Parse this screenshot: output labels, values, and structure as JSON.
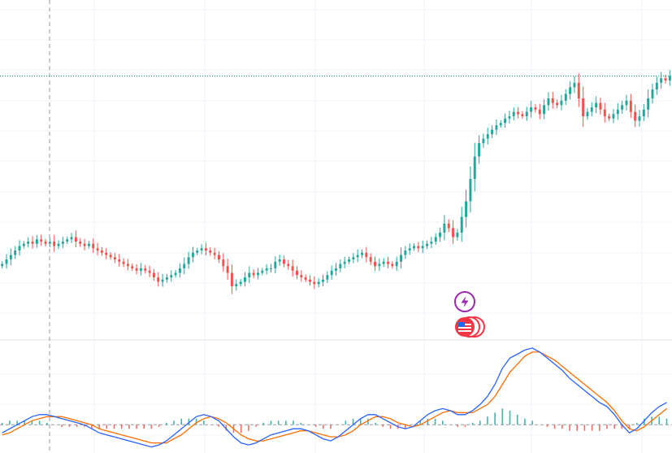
{
  "colors": {
    "background": "#ffffff",
    "grid": "#f0f3fa",
    "up_candle": "#26a69a",
    "down_candle": "#ef5350",
    "last_price_line": "#089981",
    "macd_line": "#2962ff",
    "signal_line": "#ff6d00",
    "histogram_up": "#26a69a",
    "histogram_down": "#ef5350",
    "crosshair": "#9598a1",
    "pane_separator": "#e0e3eb",
    "event_lightning": "#9c27b0",
    "event_flag": "#f23645"
  },
  "icons": {
    "event_marker_1": "lightning-icon",
    "event_marker_2": "us-flag-icon"
  },
  "chart_data": [
    {
      "type": "candlestick",
      "title": "",
      "pane": "price",
      "visible_points": 155,
      "closes": [
        0.74,
        0.76,
        0.78,
        0.8,
        0.82,
        0.83,
        0.84,
        0.83,
        0.85,
        0.84,
        0.83,
        0.84,
        0.82,
        0.83,
        0.84,
        0.85,
        0.86,
        0.84,
        0.83,
        0.82,
        0.83,
        0.81,
        0.8,
        0.79,
        0.78,
        0.77,
        0.76,
        0.75,
        0.74,
        0.73,
        0.72,
        0.71,
        0.72,
        0.71,
        0.7,
        0.68,
        0.66,
        0.67,
        0.68,
        0.69,
        0.7,
        0.72,
        0.74,
        0.77,
        0.79,
        0.8,
        0.81,
        0.8,
        0.79,
        0.78,
        0.76,
        0.73,
        0.7,
        0.64,
        0.65,
        0.66,
        0.68,
        0.7,
        0.69,
        0.7,
        0.71,
        0.72,
        0.72,
        0.75,
        0.76,
        0.74,
        0.73,
        0.71,
        0.69,
        0.68,
        0.67,
        0.66,
        0.65,
        0.66,
        0.67,
        0.69,
        0.71,
        0.72,
        0.74,
        0.75,
        0.76,
        0.77,
        0.78,
        0.79,
        0.77,
        0.75,
        0.73,
        0.74,
        0.75,
        0.74,
        0.73,
        0.75,
        0.78,
        0.8,
        0.81,
        0.82,
        0.81,
        0.82,
        0.83,
        0.84,
        0.86,
        0.88,
        0.92,
        0.9,
        0.86,
        0.88,
        0.95,
        1.02,
        1.12,
        1.22,
        1.28,
        1.3,
        1.32,
        1.34,
        1.36,
        1.37,
        1.39,
        1.4,
        1.42,
        1.41,
        1.4,
        1.42,
        1.44,
        1.43,
        1.41,
        1.45,
        1.48,
        1.46,
        1.45,
        1.47,
        1.5,
        1.53,
        1.55,
        1.48,
        1.4,
        1.42,
        1.44,
        1.46,
        1.43,
        1.4,
        1.39,
        1.41,
        1.43,
        1.45,
        1.47,
        1.42,
        1.38,
        1.4,
        1.43,
        1.48,
        1.52,
        1.55,
        1.57,
        1.56,
        1.58
      ],
      "last_price_level": 1.58,
      "x_range": [
        0,
        155
      ],
      "y_range": [
        0.4,
        1.92
      ]
    },
    {
      "type": "line",
      "title": "",
      "pane": "oscillator",
      "series": [
        {
          "key": "macd",
          "values": [
            -0.04,
            -0.02,
            0.0,
            0.02,
            0.04,
            0.05,
            0.05,
            0.04,
            0.03,
            0.02,
            0.01,
            0.0,
            -0.02,
            -0.04,
            -0.05,
            -0.06,
            -0.07,
            -0.08,
            -0.09,
            -0.1,
            -0.11,
            -0.1,
            -0.08,
            -0.05,
            -0.02,
            0.01,
            0.04,
            0.05,
            0.04,
            0.02,
            -0.02,
            -0.06,
            -0.09,
            -0.1,
            -0.09,
            -0.07,
            -0.05,
            -0.04,
            -0.03,
            -0.02,
            -0.02,
            -0.03,
            -0.05,
            -0.07,
            -0.08,
            -0.06,
            -0.03,
            0.0,
            0.03,
            0.05,
            0.05,
            0.03,
            0.01,
            -0.01,
            -0.02,
            -0.01,
            0.02,
            0.05,
            0.07,
            0.08,
            0.07,
            0.05,
            0.05,
            0.07,
            0.1,
            0.14,
            0.2,
            0.28,
            0.33,
            0.35,
            0.37,
            0.38,
            0.36,
            0.33,
            0.3,
            0.27,
            0.23,
            0.2,
            0.17,
            0.14,
            0.11,
            0.09,
            0.05,
            0.0,
            -0.04,
            -0.02,
            0.02,
            0.06,
            0.09,
            0.11
          ]
        },
        {
          "key": "signal",
          "values": [
            -0.05,
            -0.04,
            -0.02,
            0.0,
            0.02,
            0.03,
            0.04,
            0.04,
            0.04,
            0.03,
            0.02,
            0.01,
            0.0,
            -0.02,
            -0.03,
            -0.04,
            -0.05,
            -0.06,
            -0.07,
            -0.08,
            -0.09,
            -0.09,
            -0.09,
            -0.07,
            -0.05,
            -0.02,
            0.01,
            0.03,
            0.04,
            0.03,
            0.01,
            -0.02,
            -0.05,
            -0.07,
            -0.08,
            -0.08,
            -0.07,
            -0.06,
            -0.05,
            -0.04,
            -0.03,
            -0.03,
            -0.04,
            -0.05,
            -0.06,
            -0.06,
            -0.05,
            -0.03,
            0.0,
            0.02,
            0.04,
            0.04,
            0.03,
            0.01,
            0.0,
            -0.01,
            0.0,
            0.02,
            0.04,
            0.06,
            0.07,
            0.06,
            0.06,
            0.06,
            0.08,
            0.1,
            0.14,
            0.2,
            0.26,
            0.3,
            0.34,
            0.36,
            0.36,
            0.34,
            0.32,
            0.29,
            0.26,
            0.23,
            0.2,
            0.17,
            0.14,
            0.11,
            0.07,
            0.02,
            -0.02,
            -0.03,
            -0.01,
            0.02,
            0.05,
            0.08
          ]
        }
      ],
      "histogram": [
        0.01,
        0.02,
        0.02,
        0.02,
        0.02,
        0.02,
        0.01,
        0.0,
        -0.01,
        -0.01,
        -0.01,
        -0.01,
        -0.02,
        -0.02,
        -0.02,
        -0.02,
        -0.02,
        -0.02,
        -0.02,
        -0.02,
        -0.02,
        -0.01,
        0.01,
        0.02,
        0.03,
        0.03,
        0.03,
        0.02,
        0.0,
        -0.01,
        -0.03,
        -0.04,
        -0.04,
        -0.03,
        -0.01,
        0.01,
        0.02,
        0.02,
        0.02,
        0.02,
        0.01,
        0.0,
        -0.01,
        -0.02,
        -0.02,
        0.0,
        0.02,
        0.03,
        0.03,
        0.03,
        0.01,
        -0.01,
        -0.02,
        -0.02,
        -0.02,
        0.0,
        0.02,
        0.03,
        0.03,
        0.02,
        0.0,
        -0.01,
        -0.01,
        0.01,
        0.02,
        0.04,
        0.06,
        0.08,
        0.07,
        0.05,
        0.03,
        0.02,
        0.0,
        -0.01,
        -0.02,
        -0.02,
        -0.03,
        -0.03,
        -0.03,
        -0.03,
        -0.03,
        -0.02,
        -0.02,
        -0.02,
        -0.02,
        0.01,
        0.03,
        0.04,
        0.04,
        0.03
      ],
      "x_range": [
        0,
        155
      ],
      "y_range": [
        -0.14,
        0.42
      ]
    }
  ]
}
